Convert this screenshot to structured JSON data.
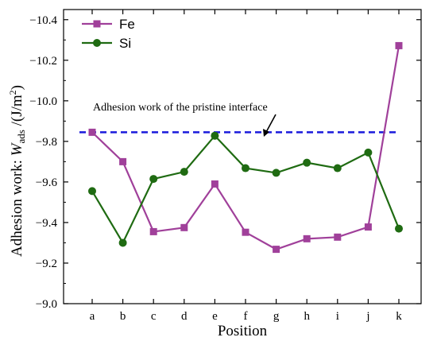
{
  "chart_data": {
    "type": "line",
    "x": [
      "a",
      "b",
      "c",
      "d",
      "e",
      "f",
      "g",
      "h",
      "i",
      "j",
      "k"
    ],
    "xlabel": "Position",
    "ylabel": {
      "prefix": "Adhesion work: ",
      "symbol": "W",
      "subscript": "ads",
      "unit": " /(J/m",
      "unit_sup": "2",
      "unit_close": ")"
    },
    "ylim": [
      -9.0,
      -10.45
    ],
    "yticks": [
      -9.0,
      -9.2,
      -9.4,
      -9.6,
      -9.8,
      -10.0,
      -10.2,
      -10.4
    ],
    "ytick_labels": [
      "−9.0",
      "−9.2",
      "−9.4",
      "−9.6",
      "−9.8",
      "−10.0",
      "−10.2",
      "−10.4"
    ],
    "y_inverted": true,
    "series": [
      {
        "name": "Fe",
        "marker": "square",
        "color": "#a0409a",
        "values": [
          -9.845,
          -9.7,
          -9.355,
          -9.375,
          -9.59,
          -9.352,
          -9.268,
          -9.32,
          -9.328,
          -9.378,
          -10.272
        ]
      },
      {
        "name": "Si",
        "marker": "circle",
        "color": "#1f6b12",
        "values": [
          -9.555,
          -9.3,
          -9.615,
          -9.65,
          -9.828,
          -9.668,
          -9.645,
          -9.695,
          -9.668,
          -9.745,
          -9.37
        ]
      }
    ],
    "reference_line": {
      "value": -9.845,
      "color": "#1a1adc",
      "style": "dashed",
      "label": "Adhesion work of the pristine interface"
    },
    "legend_position": "top-left",
    "grid": false
  }
}
